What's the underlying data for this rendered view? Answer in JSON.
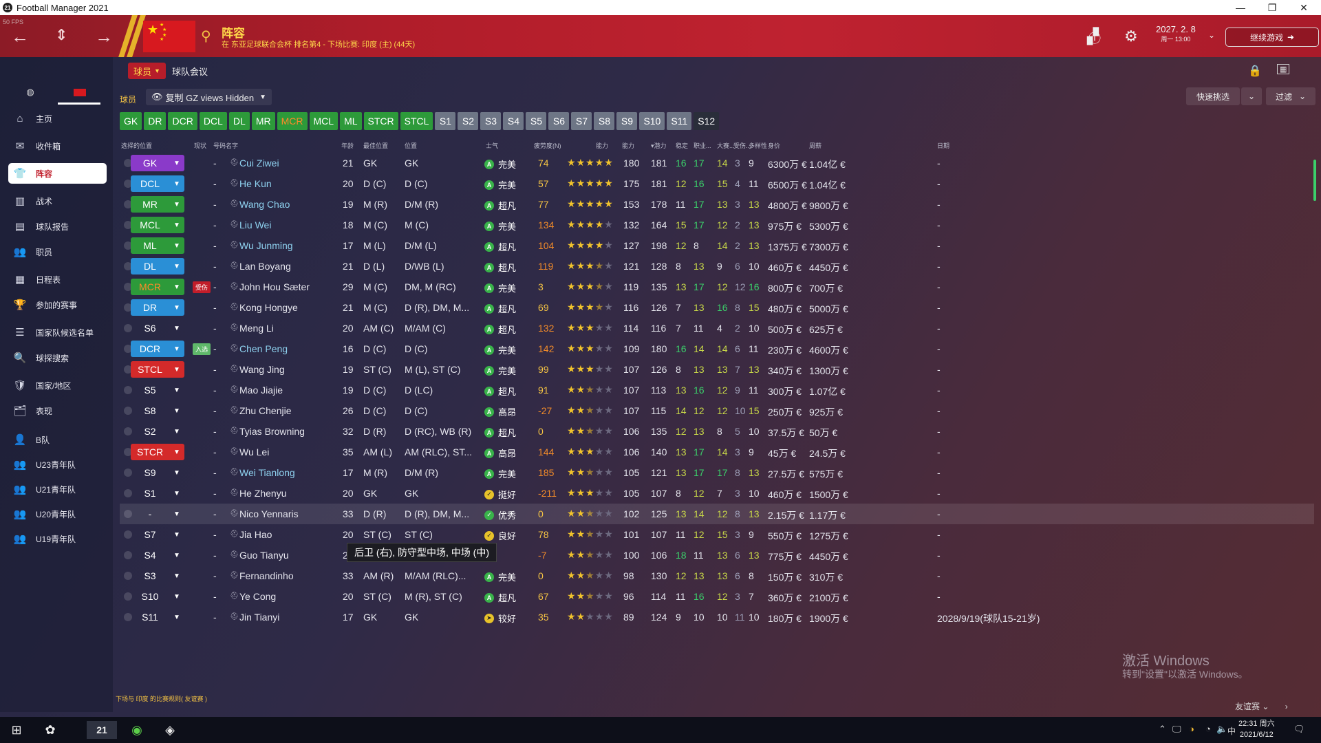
{
  "window": {
    "title": "Football Manager 2021",
    "app_icon": "21",
    "controls": [
      "—",
      "❐",
      "✕"
    ]
  },
  "header": {
    "fps": "50 FPS",
    "title": "阵容",
    "subtitle": "在 东亚足球联合会杯 排名第4 - 下场比赛: 印度 (主) (44天)",
    "date": "2027. 2. 8",
    "time": "周一 13:00",
    "continue_label": "继续游戏",
    "accent": "#b01d2a"
  },
  "sidebar": {
    "items": [
      {
        "icon": "⌂",
        "label": "主页"
      },
      {
        "icon": "✉",
        "label": "收件箱"
      },
      {
        "icon": "👕",
        "label": "阵容",
        "active": true
      },
      {
        "icon": "▥",
        "label": "战术"
      },
      {
        "icon": "▤",
        "label": "球队报告"
      },
      {
        "icon": "👥",
        "label": "职员"
      },
      {
        "icon": "▦",
        "label": "日程表"
      },
      {
        "icon": "🏆",
        "label": "参加的赛事"
      },
      {
        "icon": "☰",
        "label": "国家队候选名单"
      },
      {
        "icon": "🔍",
        "label": "球探搜索"
      },
      {
        "icon": "🛡",
        "label": "国家/地区"
      },
      {
        "icon": "🗂",
        "label": "表现"
      },
      {
        "icon": "👤",
        "label": "B队"
      },
      {
        "icon": "👥",
        "label": "U23青年队"
      },
      {
        "icon": "👥",
        "label": "U21青年队"
      },
      {
        "icon": "👥",
        "label": "U20青年队"
      },
      {
        "icon": "👥",
        "label": "U19青年队"
      }
    ]
  },
  "tabs": {
    "players": "球员",
    "meeting": "球队会议"
  },
  "toolbar": {
    "section_label": "球员",
    "view": "复制 GZ views Hidden",
    "quick_pick": "快速挑选",
    "filter": "过滤",
    "positions": [
      "GK",
      "DR",
      "DCR",
      "DCL",
      "DL",
      "MR",
      "MCR",
      "MCL",
      "ML",
      "STCR",
      "STCL",
      "S1",
      "S2",
      "S3",
      "S4",
      "S5",
      "S6",
      "S7",
      "S8",
      "S9",
      "S10",
      "S11",
      "S12"
    ]
  },
  "table": {
    "columns": [
      "选择的位置",
      "现状",
      "号码",
      "名字",
      "年龄",
      "最佳位置",
      "位置",
      "士气",
      "疲劳度(N)",
      "能力",
      "能力",
      "▾潜力",
      "稳定",
      "职业...",
      "大赛...",
      "受伤...",
      "多样性",
      "身价",
      "周薪",
      "日期"
    ],
    "rows": [
      {
        "sel": "GK",
        "selColor": "#8a3ac9",
        "name": "Cui Ziwei",
        "hot": true,
        "age": "21",
        "best": "GK",
        "pos": "GK",
        "morale": "完美",
        "mi": "A",
        "fat": "74",
        "stars": 5,
        "ca": "180",
        "pa": "181",
        "c1": "16",
        "c2": "17",
        "c3": "14",
        "c4": "3",
        "c5": "9",
        "value": "6300万 €",
        "wage": "1.04亿 €",
        "date": "-"
      },
      {
        "sel": "DCL",
        "selColor": "#2a8fd6",
        "name": "He Kun",
        "hot": true,
        "age": "20",
        "best": "D (C)",
        "pos": "D (C)",
        "morale": "完美",
        "mi": "A",
        "fat": "57",
        "stars": 5,
        "ca": "175",
        "pa": "181",
        "c1": "12",
        "c2": "16",
        "c3": "15",
        "c4": "4",
        "c5": "11",
        "value": "6500万 €",
        "wage": "1.04亿 €",
        "date": "-"
      },
      {
        "sel": "MR",
        "selColor": "#2d9a3a",
        "name": "Wang Chao",
        "hot": true,
        "age": "19",
        "best": "M (R)",
        "pos": "D/M (R)",
        "morale": "超凡",
        "mi": "A",
        "fat": "77",
        "stars": 5,
        "ca": "153",
        "pa": "178",
        "c1": "11",
        "c2": "17",
        "c3": "13",
        "c4": "3",
        "c5": "13",
        "value": "4800万 €",
        "wage": "9800万 €",
        "date": "-"
      },
      {
        "sel": "MCL",
        "selColor": "#2d9a3a",
        "name": "Liu Wei",
        "hot": true,
        "age": "18",
        "best": "M (C)",
        "pos": "M (C)",
        "morale": "完美",
        "mi": "A",
        "fat": "134",
        "stars": 4,
        "ca": "132",
        "pa": "164",
        "c1": "15",
        "c2": "17",
        "c3": "12",
        "c4": "2",
        "c5": "13",
        "value": "975万 €",
        "wage": "5300万 €",
        "date": "-"
      },
      {
        "sel": "ML",
        "selColor": "#2d9a3a",
        "name": "Wu Junming",
        "hot": true,
        "age": "17",
        "best": "M (L)",
        "pos": "D/M (L)",
        "morale": "超凡",
        "mi": "A",
        "fat": "104",
        "stars": 4,
        "ca": "127",
        "pa": "198",
        "c1": "12",
        "c2": "8",
        "c3": "14",
        "c4": "2",
        "c5": "13",
        "value": "1375万 €",
        "wage": "7300万 €",
        "date": "-"
      },
      {
        "sel": "DL",
        "selColor": "#2a8fd6",
        "name": "Lan Boyang",
        "hot": false,
        "age": "21",
        "best": "D (L)",
        "pos": "D/WB (L)",
        "morale": "超凡",
        "mi": "A",
        "fat": "119",
        "stars": 3.5,
        "ca": "121",
        "pa": "128",
        "c1": "8",
        "c2": "13",
        "c3": "9",
        "c4": "6",
        "c5": "10",
        "value": "460万 €",
        "wage": "4450万 €",
        "date": "-"
      },
      {
        "sel": "MCR",
        "selColor": "#2d9a3a",
        "selText": "#ff8a2a",
        "badge": "受伤",
        "badgeColor": "#c21d2a",
        "name": "John Hou Sæter",
        "hot": false,
        "age": "29",
        "best": "M (C)",
        "pos": "DM, M (RC)",
        "morale": "完美",
        "mi": "A",
        "fat": "3",
        "stars": 3.5,
        "ca": "119",
        "pa": "135",
        "c1": "13",
        "c2": "17",
        "c3": "12",
        "c4": "12",
        "c5": "16",
        "value": "800万 €",
        "wage": "700万 €",
        "date": "-"
      },
      {
        "sel": "DR",
        "selColor": "#2a8fd6",
        "name": "Kong Hongye",
        "hot": false,
        "age": "21",
        "best": "M (C)",
        "pos": "D (R), DM, M...",
        "morale": "超凡",
        "mi": "A",
        "fat": "69",
        "stars": 3.5,
        "ca": "116",
        "pa": "126",
        "c1": "7",
        "c2": "13",
        "c3": "16",
        "c4": "8",
        "c5": "15",
        "value": "480万 €",
        "wage": "5000万 €",
        "date": "-"
      },
      {
        "sel": "S6",
        "selColor": "transparent",
        "name": "Meng Li",
        "hot": false,
        "age": "20",
        "best": "AM (C)",
        "pos": "M/AM (C)",
        "morale": "超凡",
        "mi": "A",
        "fat": "132",
        "stars": 3,
        "ca": "114",
        "pa": "116",
        "c1": "7",
        "c2": "11",
        "c3": "4",
        "c4": "2",
        "c5": "10",
        "value": "500万 €",
        "wage": "625万 €",
        "date": "-"
      },
      {
        "sel": "DCR",
        "selColor": "#2a8fd6",
        "badge": "入选",
        "badgeColor": "#5fb86a",
        "name": "Chen Peng",
        "hot": true,
        "age": "16",
        "best": "D (C)",
        "pos": "D (C)",
        "morale": "完美",
        "mi": "A",
        "fat": "142",
        "stars": 3,
        "ca": "109",
        "pa": "180",
        "c1": "16",
        "c2": "14",
        "c3": "14",
        "c4": "6",
        "c5": "11",
        "value": "230万 €",
        "wage": "4600万 €",
        "date": "-"
      },
      {
        "sel": "STCL",
        "selColor": "#d42a2a",
        "name": "Wang Jing",
        "hot": false,
        "age": "19",
        "best": "ST (C)",
        "pos": "M (L), ST (C)",
        "morale": "完美",
        "mi": "A",
        "fat": "99",
        "stars": 3,
        "ca": "107",
        "pa": "126",
        "c1": "8",
        "c2": "13",
        "c3": "13",
        "c4": "7",
        "c5": "13",
        "value": "340万 €",
        "wage": "1300万 €",
        "date": "-"
      },
      {
        "sel": "S5",
        "selColor": "transparent",
        "name": "Mao Jiajie",
        "hot": false,
        "age": "19",
        "best": "D (C)",
        "pos": "D (LC)",
        "morale": "超凡",
        "mi": "A",
        "fat": "91",
        "stars": 2.5,
        "ca": "107",
        "pa": "113",
        "c1": "13",
        "c2": "16",
        "c3": "12",
        "c4": "9",
        "c5": "11",
        "value": "300万 €",
        "wage": "1.07亿 €",
        "date": "-"
      },
      {
        "sel": "S8",
        "selColor": "transparent",
        "name": "Zhu Chenjie",
        "hot": false,
        "age": "26",
        "best": "D (C)",
        "pos": "D (C)",
        "morale": "高昂",
        "mi": "A",
        "fat": "-27",
        "stars": 2.5,
        "ca": "107",
        "pa": "115",
        "c1": "14",
        "c2": "12",
        "c3": "12",
        "c4": "10",
        "c5": "15",
        "value": "250万 €",
        "wage": "925万 €",
        "date": "-"
      },
      {
        "sel": "S2",
        "selColor": "transparent",
        "name": "Tyias Browning",
        "hot": false,
        "age": "32",
        "best": "D (R)",
        "pos": "D (RC), WB (R)",
        "morale": "超凡",
        "mi": "A",
        "fat": "0",
        "stars": 2.5,
        "ca": "106",
        "pa": "135",
        "c1": "12",
        "c2": "13",
        "c3": "8",
        "c4": "5",
        "c5": "10",
        "value": "37.5万 €",
        "wage": "50万 €",
        "date": "-"
      },
      {
        "sel": "STCR",
        "selColor": "#d42a2a",
        "name": "Wu Lei",
        "hot": false,
        "age": "35",
        "best": "AM (L)",
        "pos": "AM (RLC), ST...",
        "morale": "高昂",
        "mi": "A",
        "fat": "144",
        "stars": 3,
        "ca": "106",
        "pa": "140",
        "c1": "13",
        "c2": "17",
        "c3": "14",
        "c4": "3",
        "c5": "9",
        "value": "45万 €",
        "wage": "24.5万 €",
        "date": "-"
      },
      {
        "sel": "S9",
        "selColor": "transparent",
        "name": "Wei Tianlong",
        "hot": true,
        "age": "17",
        "best": "M (R)",
        "pos": "D/M (R)",
        "morale": "完美",
        "mi": "A",
        "fat": "185",
        "stars": 2.5,
        "ca": "105",
        "pa": "121",
        "c1": "13",
        "c2": "17",
        "c3": "17",
        "c4": "8",
        "c5": "13",
        "value": "27.5万 €",
        "wage": "575万 €",
        "date": "-"
      },
      {
        "sel": "S1",
        "selColor": "transparent",
        "name": "He Zhenyu",
        "hot": false,
        "age": "20",
        "best": "GK",
        "pos": "GK",
        "morale": "挺好",
        "mi": "✓",
        "miY": true,
        "fat": "-211",
        "stars": 3,
        "ca": "105",
        "pa": "107",
        "c1": "8",
        "c2": "12",
        "c3": "7",
        "c4": "3",
        "c5": "10",
        "value": "460万 €",
        "wage": "1500万 €",
        "date": "-"
      },
      {
        "sel": "-",
        "selColor": "transparent",
        "name": "Nico Yennaris",
        "hot": false,
        "hl": true,
        "age": "33",
        "best": "D (R)",
        "pos": "D (R), DM, M...",
        "morale": "优秀",
        "mi": "✓",
        "fat": "0",
        "stars": 2.5,
        "ca": "102",
        "pa": "125",
        "c1": "13",
        "c2": "14",
        "c3": "12",
        "c4": "8",
        "c5": "13",
        "value": "2.15万 €",
        "wage": "1.17万 €",
        "date": "-"
      },
      {
        "sel": "S7",
        "selColor": "transparent",
        "name": "Jia Hao",
        "hot": false,
        "age": "20",
        "best": "ST (C)",
        "pos": "ST (C)",
        "morale": "良好",
        "mi": "✓",
        "miY": true,
        "fat": "78",
        "stars": 2.5,
        "ca": "101",
        "pa": "107",
        "c1": "11",
        "c2": "12",
        "c3": "15",
        "c4": "3",
        "c5": "9",
        "value": "550万 €",
        "wage": "1275万 €",
        "date": "-"
      },
      {
        "sel": "S4",
        "selColor": "transparent",
        "name": "Guo Tianyu",
        "hot": false,
        "age": "2",
        "best": "",
        "pos": "",
        "morale": "",
        "mi": "",
        "fat": "-7",
        "stars": 2.5,
        "ca": "100",
        "pa": "106",
        "c1": "18",
        "c2": "11",
        "c3": "13",
        "c4": "6",
        "c5": "13",
        "value": "775万 €",
        "wage": "4450万 €",
        "date": "-"
      },
      {
        "sel": "S3",
        "selColor": "transparent",
        "name": "Fernandinho",
        "hot": false,
        "age": "33",
        "best": "AM (R)",
        "pos": "M/AM (RLC)...",
        "morale": "完美",
        "mi": "A",
        "fat": "0",
        "stars": 2.5,
        "ca": "98",
        "pa": "130",
        "c1": "12",
        "c2": "13",
        "c3": "13",
        "c4": "6",
        "c5": "8",
        "value": "150万 €",
        "wage": "310万 €",
        "date": "-"
      },
      {
        "sel": "S10",
        "selColor": "transparent",
        "name": "Ye Cong",
        "hot": false,
        "age": "20",
        "best": "ST (C)",
        "pos": "M (R), ST (C)",
        "morale": "超凡",
        "mi": "A",
        "fat": "67",
        "stars": 2.5,
        "ca": "96",
        "pa": "114",
        "c1": "11",
        "c2": "16",
        "c3": "12",
        "c4": "3",
        "c5": "7",
        "value": "360万 €",
        "wage": "2100万 €",
        "date": "-"
      },
      {
        "sel": "S11",
        "selColor": "transparent",
        "name": "Jin Tianyi",
        "hot": false,
        "age": "17",
        "best": "GK",
        "pos": "GK",
        "morale": "较好",
        "mi": "➤",
        "miY": true,
        "fat": "35",
        "stars": 2,
        "ca": "89",
        "pa": "124",
        "c1": "9",
        "c2": "10",
        "c3": "10",
        "c4": "11",
        "c5": "10",
        "value": "180万 €",
        "wage": "1900万 €",
        "date": "2028/9/19(球队15-21岁)"
      }
    ]
  },
  "tooltip": "后卫 (右), 防守型中场, 中场 (中)",
  "footer": {
    "next_match_note": "下场与 印度 的比赛规则( 友谊赛 )",
    "friendly": "友谊赛"
  },
  "watermark": {
    "line1": "激活 Windows",
    "line2": "转到\"设置\"以激活 Windows。"
  },
  "taskbar": {
    "clock_time": "22:31 周六",
    "clock_date": "2021/6/12",
    "ime": "中"
  }
}
